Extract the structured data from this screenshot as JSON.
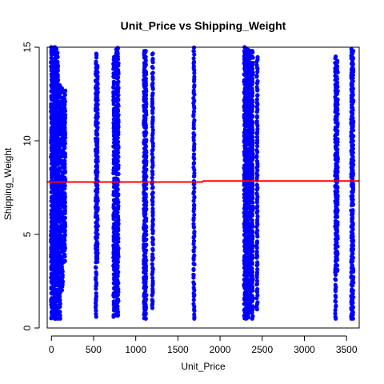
{
  "chart_data": {
    "type": "scatter",
    "title": "Unit_Price vs Shipping_Weight",
    "xlabel": "Unit_Price",
    "ylabel": "Shipping_Weight",
    "xlim": [
      -50,
      3650
    ],
    "ylim": [
      0,
      15
    ],
    "x_ticks": [
      0,
      500,
      1000,
      1500,
      2000,
      2500,
      3000,
      3500
    ],
    "y_ticks": [
      0,
      5,
      10,
      15
    ],
    "grid": false,
    "point_color": "#0000ff",
    "trend_color": "#ff0000",
    "trend_line": {
      "x": [
        -50,
        1790,
        1800,
        3650
      ],
      "y": [
        7.8,
        7.8,
        7.85,
        7.85
      ]
    },
    "series": [
      {
        "columns": [
          {
            "x": 0,
            "y_min": 0.5,
            "y_max": 15.0
          },
          {
            "x": 20,
            "y_min": 0.5,
            "y_max": 15.0
          },
          {
            "x": 40,
            "y_min": 0.5,
            "y_max": 15.0
          },
          {
            "x": 55,
            "y_min": 0.5,
            "y_max": 14.9
          },
          {
            "x": 75,
            "y_min": 0.5,
            "y_max": 14.7
          },
          {
            "x": 100,
            "y_min": 0.5,
            "y_max": 13.0
          },
          {
            "x": 130,
            "y_min": 2.0,
            "y_max": 12.8
          },
          {
            "x": 160,
            "y_min": 3.5,
            "y_max": 12.7
          },
          {
            "x": 530,
            "y_min": 0.6,
            "y_max": 14.7
          },
          {
            "x": 545,
            "y_min": 3.5,
            "y_max": 14.0
          },
          {
            "x": 740,
            "y_min": 0.6,
            "y_max": 14.5
          },
          {
            "x": 770,
            "y_min": 0.6,
            "y_max": 14.9
          },
          {
            "x": 790,
            "y_min": 0.6,
            "y_max": 15.0
          },
          {
            "x": 1100,
            "y_min": 0.5,
            "y_max": 14.8
          },
          {
            "x": 1120,
            "y_min": 0.5,
            "y_max": 14.8
          },
          {
            "x": 1200,
            "y_min": 1.0,
            "y_max": 14.7
          },
          {
            "x": 1690,
            "y_min": 0.5,
            "y_max": 15.0
          },
          {
            "x": 2290,
            "y_min": 0.5,
            "y_max": 15.0
          },
          {
            "x": 2310,
            "y_min": 0.5,
            "y_max": 15.0
          },
          {
            "x": 2335,
            "y_min": 0.5,
            "y_max": 14.9
          },
          {
            "x": 2360,
            "y_min": 0.8,
            "y_max": 14.8
          },
          {
            "x": 2385,
            "y_min": 0.5,
            "y_max": 14.8
          },
          {
            "x": 2440,
            "y_min": 1.0,
            "y_max": 14.5
          },
          {
            "x": 3370,
            "y_min": 0.5,
            "y_max": 14.5
          },
          {
            "x": 3390,
            "y_min": 3.0,
            "y_max": 14.3
          },
          {
            "x": 3560,
            "y_min": 0.5,
            "y_max": 14.9
          },
          {
            "x": 3575,
            "y_min": 0.5,
            "y_max": 14.8
          }
        ]
      }
    ]
  }
}
